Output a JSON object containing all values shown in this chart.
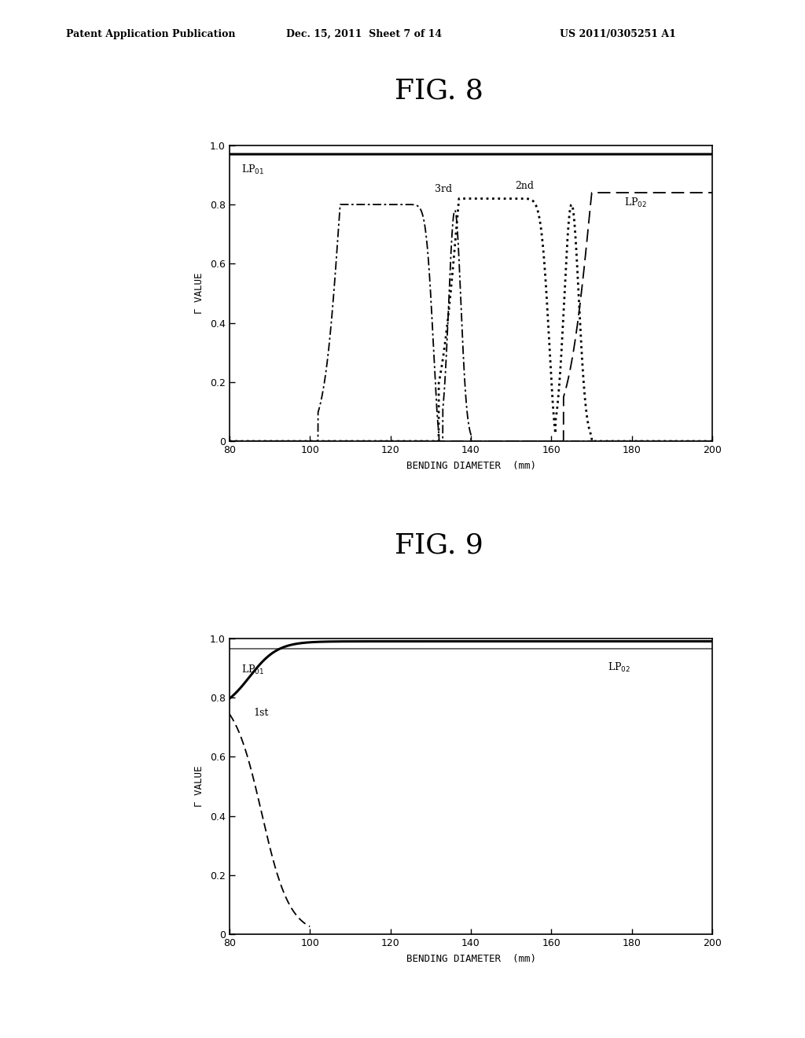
{
  "fig8_title": "FIG. 8",
  "fig9_title": "FIG. 9",
  "header_left": "Patent Application Publication",
  "header_mid": "Dec. 15, 2011  Sheet 7 of 14",
  "header_right": "US 2011/0305251 A1",
  "xlabel": "BENDING DIAMETER  (mm)",
  "ylabel": "Γ VALUE",
  "xticks": [
    80,
    100,
    120,
    140,
    160,
    180,
    200
  ],
  "yticks": [
    0,
    0.2,
    0.4,
    0.6,
    0.8,
    1.0
  ],
  "ytick_labels": [
    "0",
    "0.2",
    "0.4",
    "0.6",
    "0.8",
    "1.0"
  ],
  "bg_color": "#ffffff"
}
